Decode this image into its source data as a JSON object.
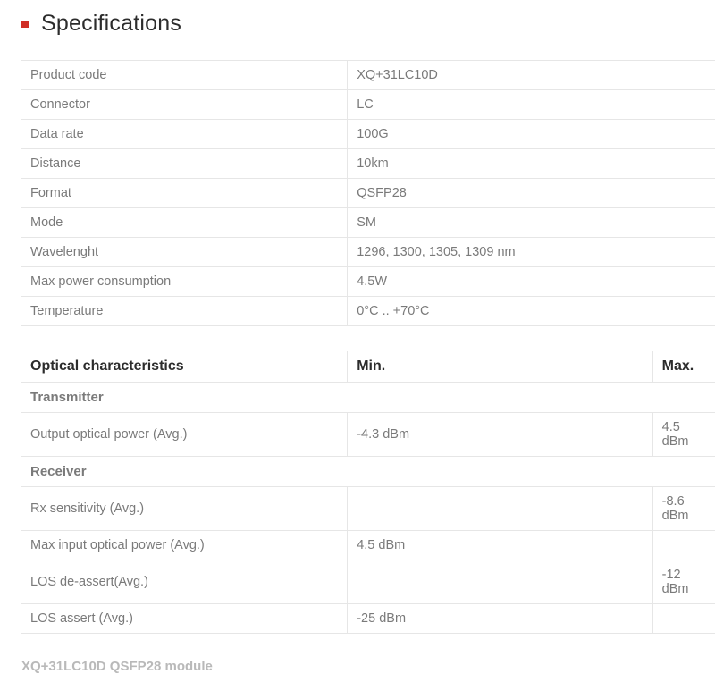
{
  "section": {
    "title": "Specifications",
    "bullet_color": "#d02e26"
  },
  "specs": {
    "rows": [
      {
        "label": "Product code",
        "value": "XQ+31LC10D"
      },
      {
        "label": "Connector",
        "value": "LC"
      },
      {
        "label": "Data rate",
        "value": "100G"
      },
      {
        "label": "Distance",
        "value": "10km"
      },
      {
        "label": "Format",
        "value": "QSFP28"
      },
      {
        "label": "Mode",
        "value": "SM"
      },
      {
        "label": "Wavelenght",
        "value": "1296, 1300, 1305, 1309 nm"
      },
      {
        "label": "Max power consumption",
        "value": "4.5W"
      },
      {
        "label": "Temperature",
        "value": "0°C .. +70°C"
      }
    ]
  },
  "optical": {
    "headers": {
      "label": "Optical characteristics",
      "min": "Min.",
      "max": "Max."
    },
    "transmitter_label": "Transmitter",
    "transmitter_rows": [
      {
        "label": "Output optical power (Avg.)",
        "min": "-4.3 dBm",
        "max": "4.5 dBm"
      }
    ],
    "receiver_label": "Receiver",
    "receiver_rows": [
      {
        "label": "Rx sensitivity (Avg.)",
        "min": "",
        "max": "-8.6 dBm"
      },
      {
        "label": "Max input optical power (Avg.)",
        "min": "4.5 dBm",
        "max": ""
      },
      {
        "label": "LOS de-assert(Avg.)",
        "min": "",
        "max": "-12 dBm"
      },
      {
        "label": "LOS assert (Avg.)",
        "min": "-25 dBm",
        "max": ""
      }
    ]
  },
  "footer": "XQ+31LC10D QSFP28 module",
  "colors": {
    "text_muted": "#7a7a7a",
    "text_strong": "#2c2c2c",
    "border": "#e6e6e6",
    "footer": "#b9b9b9",
    "background": "#ffffff"
  },
  "typography": {
    "base_fontsize": 14.5,
    "title_fontsize": 25,
    "header_fontsize": 16,
    "footer_fontsize": 15
  }
}
